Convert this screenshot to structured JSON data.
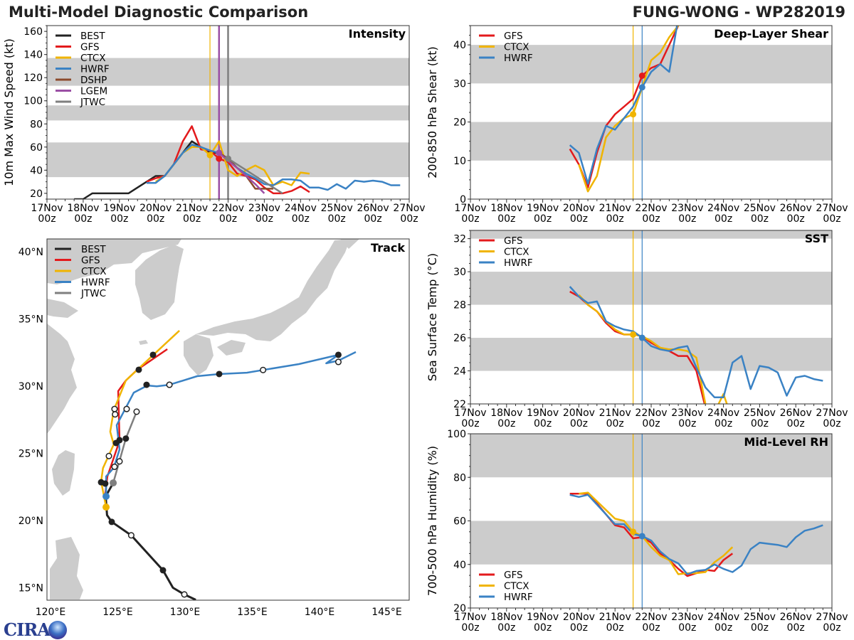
{
  "header": {
    "title": "Multi-Model Diagnostic Comparison",
    "storm": "FUNG-WONG - WP282019"
  },
  "logo": {
    "text": "CIRA"
  },
  "colors": {
    "BEST": "#222222",
    "GFS": "#e31a1c",
    "CTCX": "#f0b400",
    "HWRF": "#3a82c4",
    "DSHP": "#8b4a2b",
    "LGEM": "#9b4fa5",
    "JTWC": "#7f7f7f",
    "band": "#cccccc",
    "land": "#cccccc"
  },
  "chart_data": [
    {
      "id": "intensity",
      "type": "line",
      "title": "Intensity",
      "ylabel": "10m Max Wind Speed (kt)",
      "xlim": [
        "17Nov 00z",
        "27Nov 00z"
      ],
      "ylim": [
        15,
        165
      ],
      "yticks": [
        20,
        40,
        60,
        80,
        100,
        120,
        140,
        160
      ],
      "xticks": [
        "17Nov 00z",
        "18Nov 00z",
        "19Nov 00z",
        "20Nov 00z",
        "21Nov 00z",
        "22Nov 00z",
        "23Nov 00z",
        "24Nov 00z",
        "25Nov 00z",
        "26Nov 00z",
        "27Nov 00z"
      ],
      "bands": [
        [
          34,
          64
        ],
        [
          83,
          96
        ],
        [
          113,
          137
        ]
      ],
      "interval_h": 6,
      "legend": "top-left",
      "vlines": [
        {
          "t": "21Nov 12z",
          "series": "CTCX"
        },
        {
          "t": "21Nov 18z",
          "series": "LGEM"
        },
        {
          "t": "22Nov 00z",
          "series": "JTWC"
        }
      ],
      "markers": [
        {
          "series": "CTCX",
          "t": "21Nov 12z",
          "v": 53
        },
        {
          "series": "GFS",
          "t": "21Nov 18z",
          "v": 50
        },
        {
          "series": "LGEM",
          "t": "21Nov 18z",
          "v": 55
        },
        {
          "series": "JTWC",
          "t": "22Nov 00z",
          "v": 50
        }
      ],
      "series": [
        {
          "name": "BEST",
          "start": "17Nov 18z",
          "values": [
            15,
            15,
            20,
            20,
            20,
            20,
            20,
            25,
            30,
            35,
            35,
            45,
            55,
            65,
            60,
            55,
            55
          ]
        },
        {
          "name": "GFS",
          "start": "19Nov 18z",
          "values": [
            30,
            33,
            35,
            45,
            65,
            78,
            58,
            57,
            50,
            47,
            37,
            35,
            32,
            25,
            20,
            20,
            22,
            26,
            21
          ]
        },
        {
          "name": "CTCX",
          "start": "20Nov 00z",
          "values": [
            30,
            35,
            45,
            55,
            60,
            60,
            53,
            65,
            40,
            35,
            40,
            44,
            40,
            27,
            30,
            27,
            38,
            37
          ]
        },
        {
          "name": "HWRF",
          "start": "19Nov 18z",
          "values": [
            29,
            29,
            35,
            45,
            55,
            62,
            60,
            57,
            55,
            50,
            42,
            37,
            33,
            28,
            27,
            32,
            32,
            31,
            25,
            25,
            23,
            28,
            24,
            31,
            30,
            31,
            30,
            27,
            27
          ]
        },
        {
          "name": "DSHP",
          "start": "21Nov 18z",
          "values": [
            55,
            50,
            42,
            35,
            24,
            24,
            24
          ]
        },
        {
          "name": "LGEM",
          "start": "21Nov 18z",
          "values": [
            55,
            48,
            42,
            35,
            28,
            20
          ]
        },
        {
          "name": "JTWC",
          "start": "22Nov 00z",
          "values": [
            50,
            45,
            40,
            35,
            30,
            25,
            20
          ]
        }
      ]
    },
    {
      "id": "shear",
      "type": "line",
      "title": "Deep-Layer Shear",
      "ylabel": "200-850 hPa Shear (kt)",
      "xlim": [
        "17Nov 00z",
        "27Nov 00z"
      ],
      "ylim": [
        0,
        45
      ],
      "yticks": [
        0,
        10,
        20,
        30,
        40
      ],
      "xticks": [
        "17Nov 00z",
        "18Nov 00z",
        "19Nov 00z",
        "20Nov 00z",
        "21Nov 00z",
        "22Nov 00z",
        "23Nov 00z",
        "24Nov 00z",
        "25Nov 00z",
        "26Nov 00z",
        "27Nov 00z"
      ],
      "bands": [
        [
          10,
          20
        ],
        [
          30,
          40
        ]
      ],
      "interval_h": 6,
      "legend": "top-left",
      "vlines": [
        {
          "t": "21Nov 12z",
          "series": "CTCX"
        },
        {
          "t": "21Nov 18z",
          "series": "HWRF"
        }
      ],
      "markers": [
        {
          "series": "CTCX",
          "t": "21Nov 12z",
          "v": 22
        },
        {
          "series": "GFS",
          "t": "21Nov 18z",
          "v": 32
        },
        {
          "series": "HWRF",
          "t": "21Nov 18z",
          "v": 29
        }
      ],
      "series": [
        {
          "name": "GFS",
          "start": "19Nov 18z",
          "values": [
            13,
            9,
            3,
            12,
            19,
            22,
            24,
            26,
            32,
            34,
            35,
            40,
            45
          ]
        },
        {
          "name": "CTCX",
          "start": "20Nov 00z",
          "values": [
            9,
            2,
            6,
            16,
            19,
            21,
            22,
            29,
            36,
            38,
            42,
            45
          ]
        },
        {
          "name": "HWRF",
          "start": "19Nov 18z",
          "values": [
            14,
            12,
            4,
            13,
            19,
            18,
            21,
            24,
            29,
            33,
            35,
            33,
            47
          ]
        }
      ]
    },
    {
      "id": "sst",
      "type": "line",
      "title": "SST",
      "ylabel": "Sea Surface Temp (°C)",
      "xlim": [
        "17Nov 00z",
        "27Nov 00z"
      ],
      "ylim": [
        22,
        32.5
      ],
      "yticks": [
        22,
        24,
        26,
        28,
        30,
        32
      ],
      "xticks": [
        "17Nov 00z",
        "18Nov 00z",
        "19Nov 00z",
        "20Nov 00z",
        "21Nov 00z",
        "22Nov 00z",
        "23Nov 00z",
        "24Nov 00z",
        "25Nov 00z",
        "26Nov 00z",
        "27Nov 00z"
      ],
      "bands": [
        [
          24,
          26
        ],
        [
          28,
          30
        ],
        [
          32,
          34
        ]
      ],
      "interval_h": 6,
      "legend": "top-left",
      "vlines": [
        {
          "t": "21Nov 12z",
          "series": "CTCX"
        },
        {
          "t": "21Nov 18z",
          "series": "HWRF"
        }
      ],
      "markers": [
        {
          "series": "CTCX",
          "t": "21Nov 12z",
          "v": 26.2
        },
        {
          "series": "HWRF",
          "t": "21Nov 18z",
          "v": 26.0
        }
      ],
      "series": [
        {
          "name": "GFS",
          "start": "19Nov 18z",
          "values": [
            28.8,
            28.5,
            28.0,
            27.6,
            26.9,
            26.4,
            26.2,
            26.2,
            26.1,
            25.7,
            25.4,
            25.2,
            24.9,
            24.9,
            24.0,
            21.8
          ]
        },
        {
          "name": "CTCX",
          "start": "20Nov 00z",
          "values": [
            28.6,
            28.0,
            27.6,
            27.0,
            26.5,
            26.2,
            26.2,
            26.1,
            25.8,
            25.4,
            25.3,
            25.3,
            25.2,
            24.8,
            22.0,
            21.5,
            22.6,
            21.0
          ]
        },
        {
          "name": "HWRF",
          "start": "19Nov 18z",
          "values": [
            29.1,
            28.5,
            28.1,
            28.2,
            27.0,
            26.7,
            26.5,
            26.4,
            26.0,
            25.5,
            25.3,
            25.2,
            25.4,
            25.5,
            24.2,
            23.0,
            22.4,
            22.4,
            24.5,
            24.9,
            22.9,
            24.3,
            24.2,
            23.9,
            22.5,
            23.6,
            23.7,
            23.5,
            23.4
          ]
        }
      ]
    },
    {
      "id": "rh",
      "type": "line",
      "title": "Mid-Level RH",
      "ylabel": "700-500 hPa Humidity (%)",
      "xlim": [
        "17Nov 00z",
        "27Nov 00z"
      ],
      "ylim": [
        20,
        100
      ],
      "yticks": [
        20,
        40,
        60,
        80,
        100
      ],
      "xticks": [
        "17Nov 00z",
        "18Nov 00z",
        "19Nov 00z",
        "20Nov 00z",
        "21Nov 00z",
        "22Nov 00z",
        "23Nov 00z",
        "24Nov 00z",
        "25Nov 00z",
        "26Nov 00z",
        "27Nov 00z"
      ],
      "bands": [
        [
          40,
          60
        ],
        [
          80,
          100
        ]
      ],
      "interval_h": 6,
      "legend": "bottom-left",
      "vlines": [
        {
          "t": "21Nov 12z",
          "series": "CTCX"
        },
        {
          "t": "21Nov 18z",
          "series": "HWRF"
        }
      ],
      "markers": [
        {
          "series": "CTCX",
          "t": "21Nov 12z",
          "v": 55
        },
        {
          "series": "HWRF",
          "t": "21Nov 18z",
          "v": 53
        }
      ],
      "series": [
        {
          "name": "GFS",
          "start": "19Nov 18z",
          "values": [
            72.5,
            72.5,
            72.5,
            68,
            63,
            58,
            57,
            52,
            52.5,
            50,
            45,
            42,
            38,
            34.7,
            36,
            37.5,
            37,
            42,
            45
          ]
        },
        {
          "name": "CTCX",
          "start": "20Nov 00z",
          "values": [
            72.5,
            73,
            69,
            65,
            61,
            60,
            55,
            53,
            48,
            44,
            42,
            35.5,
            36,
            36,
            36.5,
            41,
            44,
            48
          ]
        },
        {
          "name": "HWRF",
          "start": "19Nov 18z",
          "values": [
            72,
            71,
            72,
            67.5,
            63,
            58.5,
            58.5,
            54,
            53,
            51,
            46,
            42.5,
            40.5,
            35.5,
            37,
            37.5,
            40,
            38,
            36.5,
            39.5,
            47,
            50,
            49.5,
            49,
            48,
            52.5,
            55.5,
            56.5,
            58
          ]
        }
      ]
    },
    {
      "id": "track",
      "type": "map",
      "title": "Track",
      "legend": "top-left",
      "lon_range": [
        119.7,
        146.7
      ],
      "lat_range": [
        14.1,
        41.0
      ],
      "lon_ticks": [
        "120°E",
        "125°E",
        "130°E",
        "135°E",
        "140°E",
        "145°E"
      ],
      "lat_ticks": [
        "15°N",
        "20°N",
        "25°N",
        "30°N",
        "35°N",
        "40°N"
      ],
      "tracks": [
        {
          "name": "BEST",
          "points": [
            [
              130.8,
              14.1
            ],
            [
              129.95,
              14.5
            ],
            [
              129.1,
              15.0
            ],
            [
              128.36,
              16.3
            ],
            [
              126.0,
              18.9
            ],
            [
              124.55,
              19.9
            ],
            [
              124.2,
              20.4
            ],
            [
              124.1,
              21.8
            ],
            [
              124.66,
              22.8
            ]
          ]
        },
        {
          "name": "GFS",
          "points": [
            [
              124.07,
              21.96
            ],
            [
              124.23,
              23.28
            ],
            [
              125.13,
              25.93
            ],
            [
              125.03,
              29.63
            ],
            [
              125.6,
              30.42
            ],
            [
              126.45,
              31.22
            ],
            [
              128.68,
              32.75
            ]
          ]
        },
        {
          "name": "CTCX",
          "points": [
            [
              124.13,
              21.0
            ],
            [
              123.76,
              22.91
            ],
            [
              123.9,
              23.9
            ],
            [
              124.7,
              25.66
            ],
            [
              124.44,
              26.61
            ],
            [
              124.7,
              28.2
            ],
            [
              125.6,
              30.42
            ],
            [
              129.58,
              34.13
            ]
          ]
        },
        {
          "name": "HWRF",
          "points": [
            [
              124.13,
              21.8
            ],
            [
              124.13,
              23.28
            ],
            [
              124.7,
              23.92
            ],
            [
              125.13,
              25.29
            ],
            [
              124.92,
              27.1
            ],
            [
              126.19,
              29.52
            ],
            [
              127.2,
              30.05
            ],
            [
              127.9,
              29.99
            ],
            [
              128.84,
              30.1
            ],
            [
              130.9,
              30.74
            ],
            [
              132.54,
              30.9
            ],
            [
              134.6,
              31.0
            ],
            [
              135.8,
              31.2
            ],
            [
              138.47,
              31.64
            ],
            [
              141.4,
              32.33
            ],
            [
              140.5,
              31.7
            ],
            [
              141.4,
              31.9
            ],
            [
              142.7,
              32.54
            ]
          ]
        },
        {
          "name": "JTWC",
          "points": [
            [
              124.66,
              22.8
            ],
            [
              125.6,
              26.1
            ],
            [
              126.4,
              28.1
            ]
          ]
        }
      ],
      "markers": [
        {
          "lon": 128.36,
          "lat": 16.3,
          "style": "filled"
        },
        {
          "lon": 124.55,
          "lat": 19.9,
          "style": "filled"
        },
        {
          "lon": 123.76,
          "lat": 22.85,
          "style": "filled"
        },
        {
          "lon": 124.07,
          "lat": 22.75,
          "style": "filled"
        },
        {
          "lon": 129.95,
          "lat": 14.5,
          "style": "open"
        },
        {
          "lon": 126.0,
          "lat": 18.9,
          "style": "open"
        },
        {
          "lon": 127.62,
          "lat": 32.33,
          "style": "filled"
        },
        {
          "lon": 126.56,
          "lat": 31.22,
          "style": "filled"
        },
        {
          "lon": 127.14,
          "lat": 30.1,
          "style": "filled"
        },
        {
          "lon": 132.54,
          "lat": 30.9,
          "style": "filled"
        },
        {
          "lon": 141.4,
          "lat": 32.33,
          "style": "filled"
        },
        {
          "lon": 124.87,
          "lat": 25.77,
          "style": "filled"
        },
        {
          "lon": 125.13,
          "lat": 25.98,
          "style": "filled"
        },
        {
          "lon": 125.6,
          "lat": 26.1,
          "style": "filled"
        },
        {
          "lon": 124.76,
          "lat": 28.3,
          "style": "open"
        },
        {
          "lon": 124.8,
          "lat": 27.9,
          "style": "open"
        },
        {
          "lon": 125.66,
          "lat": 28.3,
          "style": "open"
        },
        {
          "lon": 126.4,
          "lat": 28.1,
          "style": "open"
        },
        {
          "lon": 128.84,
          "lat": 30.1,
          "style": "open"
        },
        {
          "lon": 135.8,
          "lat": 31.2,
          "style": "open"
        },
        {
          "lon": 141.4,
          "lat": 31.8,
          "style": "open"
        },
        {
          "lon": 124.34,
          "lat": 24.8,
          "style": "open"
        },
        {
          "lon": 124.76,
          "lat": 24.0,
          "style": "open"
        },
        {
          "lon": 125.13,
          "lat": 24.4,
          "style": "open"
        },
        {
          "lon": 124.13,
          "lat": 21.8,
          "style": "HWRF"
        },
        {
          "lon": 124.13,
          "lat": 21.0,
          "style": "CTCX"
        },
        {
          "lon": 124.66,
          "lat": 22.8,
          "style": "JTWC"
        }
      ]
    }
  ]
}
